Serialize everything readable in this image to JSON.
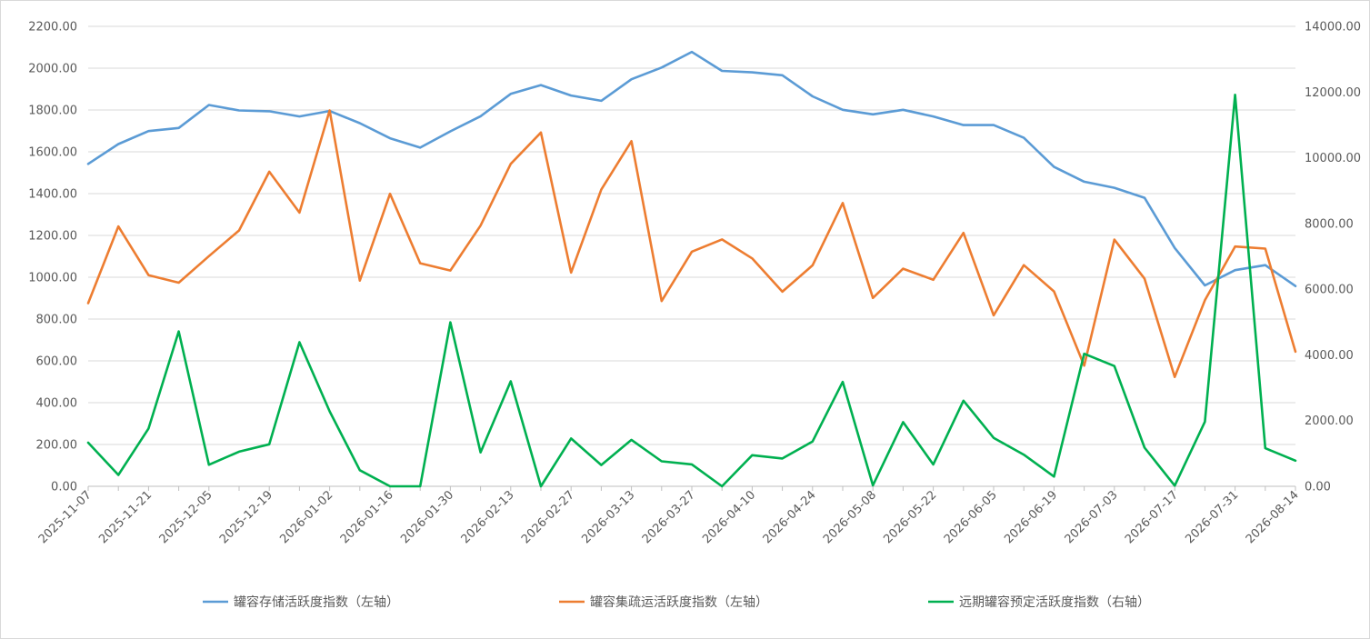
{
  "chart_data": {
    "type": "line",
    "title": "",
    "x": [
      "2025-11-07",
      "2025-11-14",
      "2025-11-21",
      "2025-11-28",
      "2025-12-05",
      "2025-12-12",
      "2025-12-19",
      "2025-12-26",
      "2026-01-02",
      "2026-01-09",
      "2026-01-16",
      "2026-01-23",
      "2026-01-30",
      "2026-02-06",
      "2026-02-13",
      "2026-02-20",
      "2026-02-27",
      "2026-03-06",
      "2026-03-13",
      "2026-03-20",
      "2026-03-27",
      "2026-04-03",
      "2026-04-10",
      "2026-04-17",
      "2026-04-24",
      "2026-05-01",
      "2026-05-08",
      "2026-05-15",
      "2026-05-22",
      "2026-05-29",
      "2026-06-05",
      "2026-06-12",
      "2026-06-19",
      "2026-06-26",
      "2026-07-03",
      "2026-07-10",
      "2026-07-17",
      "2026-07-24",
      "2026-07-31",
      "2026-08-07",
      "2026-08-14"
    ],
    "x_tick_labels": [
      "2025-11-07",
      "2025-11-21",
      "2025-12-05",
      "2025-12-19",
      "2026-01-02",
      "2026-01-16",
      "2026-01-30",
      "2026-02-13",
      "2026-02-27",
      "2026-03-13",
      "2026-03-27",
      "2026-04-10",
      "2026-04-24",
      "2026-05-08",
      "2026-05-22",
      "2026-06-05",
      "2026-06-19",
      "2026-07-03",
      "2026-07-17",
      "2026-07-31",
      "2026-08-14"
    ],
    "y_left": {
      "min": 0,
      "max": 2200,
      "step": 200,
      "tick_labels": [
        "0.00",
        "200.00",
        "400.00",
        "600.00",
        "800.00",
        "1000.00",
        "1200.00",
        "1400.00",
        "1600.00",
        "1800.00",
        "2000.00",
        "2200.00"
      ]
    },
    "y_right": {
      "min": 0,
      "max": 14000,
      "step": 2000,
      "tick_labels": [
        "0.00",
        "2000.00",
        "4000.00",
        "6000.00",
        "8000.00",
        "10000.00",
        "12000.00",
        "14000.00"
      ]
    },
    "grid": true,
    "legend_position": "bottom",
    "series": [
      {
        "name": "罐容存储活跃度指数（左轴）",
        "axis": "left",
        "color": "#5B9BD5",
        "values": [
          1542,
          1637,
          1699,
          1714,
          1824,
          1798,
          1794,
          1769,
          1795,
          1737,
          1665,
          1620,
          1698,
          1770,
          1877,
          1919,
          1869,
          1844,
          1947,
          2003,
          2078,
          1987,
          1980,
          1966,
          1865,
          1801,
          1779,
          1801,
          1769,
          1728,
          1728,
          1667,
          1528,
          1457,
          1428,
          1380,
          1140,
          961,
          1034,
          1058,
          958
        ]
      },
      {
        "name": "罐容集疏运活跃度指数（左轴）",
        "axis": "left",
        "color": "#ED7D31",
        "values": [
          876,
          1243,
          1010,
          974,
          1101,
          1224,
          1505,
          1309,
          1798,
          984,
          1399,
          1067,
          1032,
          1247,
          1542,
          1692,
          1022,
          1419,
          1651,
          886,
          1122,
          1181,
          1090,
          931,
          1057,
          1355,
          901,
          1041,
          988,
          1212,
          818,
          1058,
          932,
          577,
          1180,
          993,
          523,
          890,
          1147,
          1137,
          644
        ]
      },
      {
        "name": "远期罐容预定活跃度指数（右轴）",
        "axis": "right",
        "color": "#00B050",
        "values": [
          1329,
          346,
          1760,
          4716,
          655,
          1053,
          1279,
          4386,
          2282,
          491,
          0,
          0,
          4992,
          1033,
          3195,
          0,
          1456,
          648,
          1415,
          760,
          667,
          0,
          947,
          846,
          1363,
          3180,
          28,
          1954,
          664,
          2605,
          1476,
          962,
          297,
          4033,
          3661,
          1175,
          19,
          1966,
          11916,
          1160,
          780
        ]
      }
    ]
  }
}
